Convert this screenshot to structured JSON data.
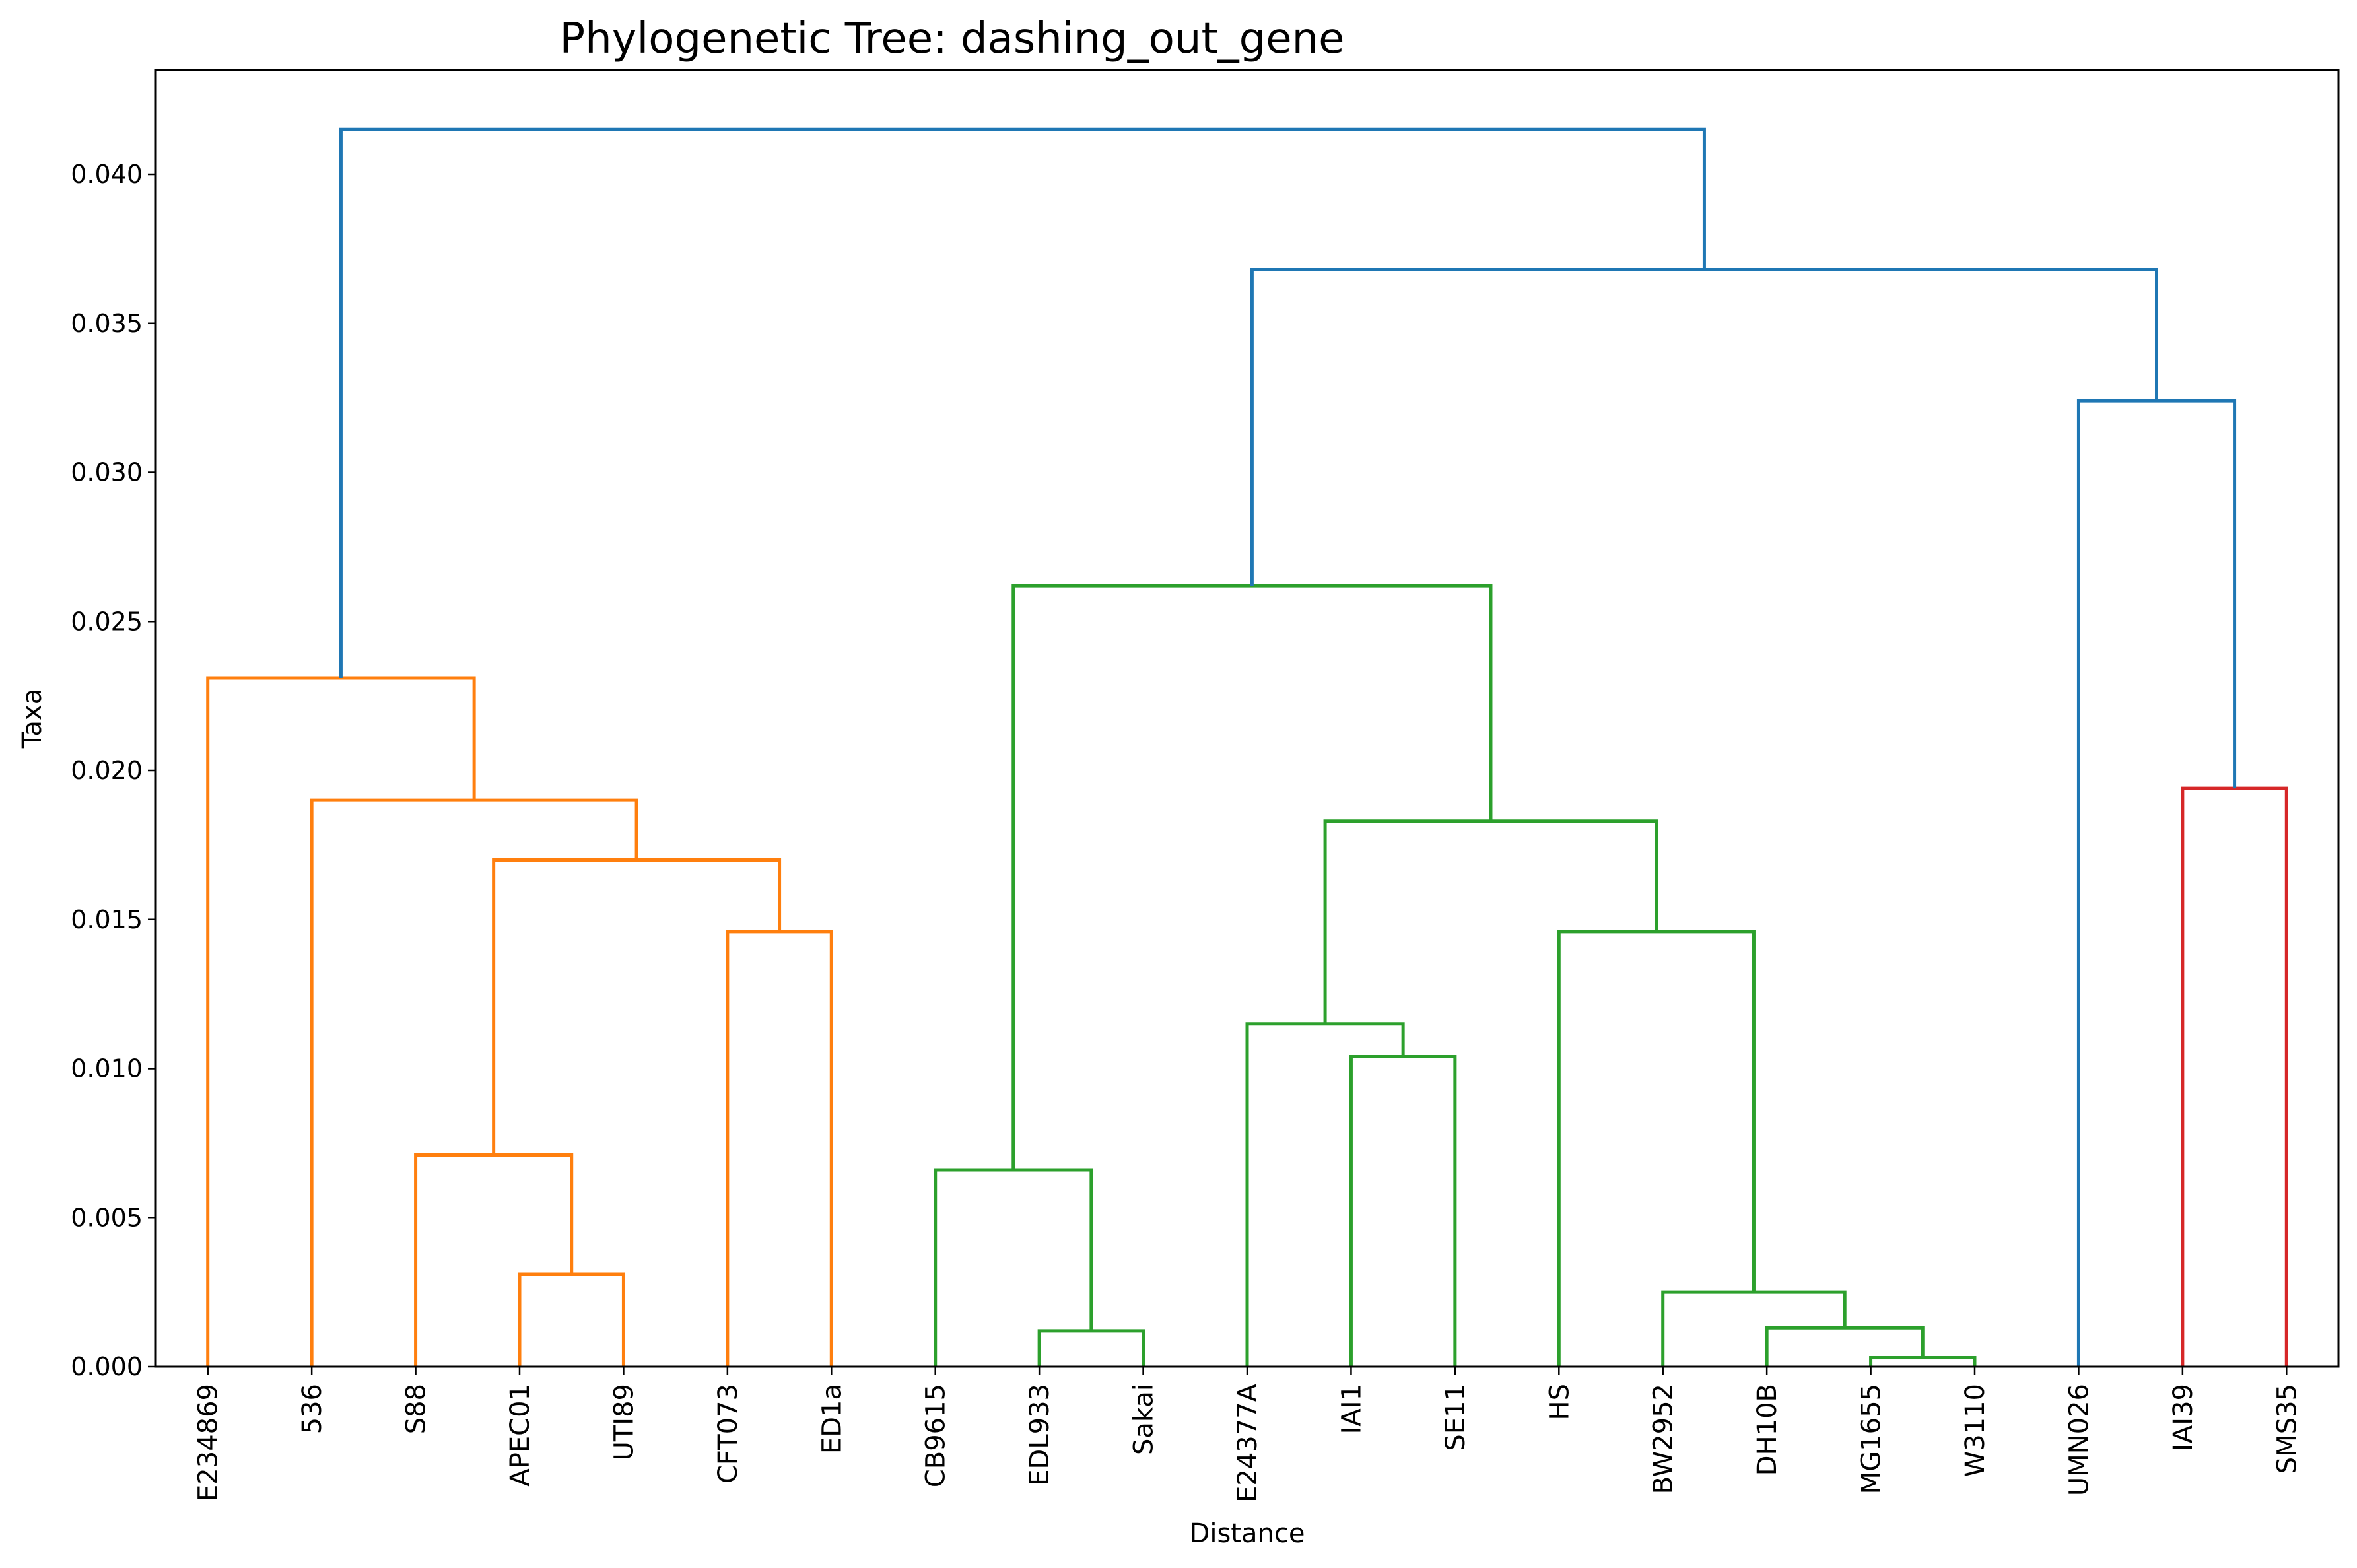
{
  "chart_data": {
    "type": "dendrogram",
    "title": "Phylogenetic Tree: dashing_out_gene",
    "xlabel": "Distance",
    "ylabel": "Taxa",
    "ylim": [
      0,
      0.0435
    ],
    "yticks": [
      "0.000",
      "0.005",
      "0.010",
      "0.015",
      "0.020",
      "0.025",
      "0.030",
      "0.035",
      "0.040"
    ],
    "grid": false,
    "leaves": [
      "E234869",
      "536",
      "S88",
      "APEC01",
      "UTI89",
      "CFT073",
      "ED1a",
      "CB9615",
      "EDL933",
      "Sakai",
      "E24377A",
      "IAI1",
      "SE11",
      "HS",
      "BW2952",
      "DH10B",
      "MG1655",
      "W3110",
      "UMN026",
      "IAI39",
      "SMS35"
    ],
    "colors": {
      "above_threshold": "#1f77b4",
      "cluster_1": "#ff7f0e",
      "cluster_2": "#2ca02c",
      "cluster_3": "#d62728"
    },
    "merges": [
      {
        "left": "APEC01",
        "right": "UTI89",
        "height": 0.0031,
        "color": "cluster_1"
      },
      {
        "left": "S88",
        "right": "m1",
        "height": 0.0071,
        "color": "cluster_1",
        "id": "m2"
      },
      {
        "left": "CFT073",
        "right": "ED1a",
        "height": 0.0146,
        "color": "cluster_1",
        "id": "m3"
      },
      {
        "left": "m2",
        "right": "m3",
        "height": 0.017,
        "color": "cluster_1",
        "id": "m4"
      },
      {
        "left": "536",
        "right": "m4",
        "height": 0.019,
        "color": "cluster_1",
        "id": "m5"
      },
      {
        "left": "E234869",
        "right": "m5",
        "height": 0.0231,
        "color": "cluster_1",
        "id": "m6"
      },
      {
        "left": "EDL933",
        "right": "Sakai",
        "height": 0.0012,
        "color": "cluster_2",
        "id": "m7"
      },
      {
        "left": "CB9615",
        "right": "m7",
        "height": 0.0066,
        "color": "cluster_2",
        "id": "m8"
      },
      {
        "left": "IAI1",
        "right": "SE11",
        "height": 0.0104,
        "color": "cluster_2",
        "id": "m9"
      },
      {
        "left": "E24377A",
        "right": "m9",
        "height": 0.0115,
        "color": "cluster_2",
        "id": "m10"
      },
      {
        "left": "MG1655",
        "right": "W3110",
        "height": 0.0003,
        "color": "cluster_2",
        "id": "m11"
      },
      {
        "left": "DH10B",
        "right": "m11",
        "height": 0.0013,
        "color": "cluster_2",
        "id": "m12"
      },
      {
        "left": "BW2952",
        "right": "m12",
        "height": 0.0025,
        "color": "cluster_2",
        "id": "m13"
      },
      {
        "left": "HS",
        "right": "m13",
        "height": 0.0146,
        "color": "cluster_2",
        "id": "m14"
      },
      {
        "left": "m10",
        "right": "m14",
        "height": 0.0183,
        "color": "cluster_2",
        "id": "m15"
      },
      {
        "left": "m8",
        "right": "m15",
        "height": 0.0262,
        "color": "cluster_2",
        "id": "m16"
      },
      {
        "left": "IAI39",
        "right": "SMS35",
        "height": 0.0194,
        "color": "cluster_3",
        "id": "m17"
      },
      {
        "left": "UMN026",
        "right": "m17",
        "height": 0.0324,
        "color": "above_threshold",
        "id": "m18"
      },
      {
        "left": "m16",
        "right": "m18",
        "height": 0.0368,
        "color": "above_threshold",
        "id": "m19"
      },
      {
        "left": "m6",
        "right": "m19",
        "height": 0.0415,
        "color": "above_threshold",
        "id": "m20"
      }
    ]
  }
}
